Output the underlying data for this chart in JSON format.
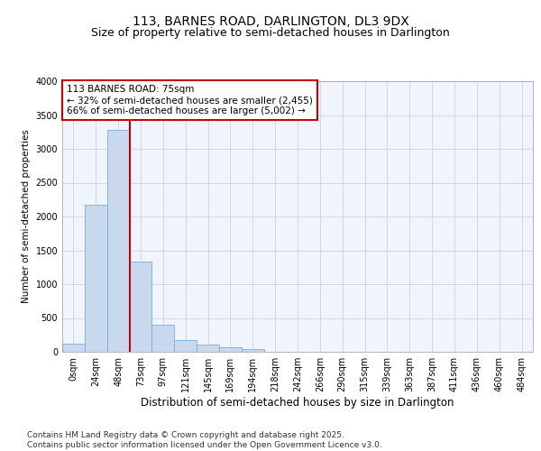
{
  "title1": "113, BARNES ROAD, DARLINGTON, DL3 9DX",
  "title2": "Size of property relative to semi-detached houses in Darlington",
  "xlabel": "Distribution of semi-detached houses by size in Darlington",
  "ylabel": "Number of semi-detached properties",
  "categories": [
    "0sqm",
    "24sqm",
    "48sqm",
    "73sqm",
    "97sqm",
    "121sqm",
    "145sqm",
    "169sqm",
    "194sqm",
    "218sqm",
    "242sqm",
    "266sqm",
    "290sqm",
    "315sqm",
    "339sqm",
    "363sqm",
    "387sqm",
    "411sqm",
    "436sqm",
    "460sqm",
    "484sqm"
  ],
  "bar_values": [
    115,
    2180,
    3280,
    1340,
    400,
    170,
    105,
    65,
    45,
    0,
    0,
    0,
    0,
    0,
    0,
    0,
    0,
    0,
    0,
    0,
    0
  ],
  "bar_color": "#c8d8ee",
  "bar_edge_color": "#7ab0d8",
  "vline_x_index": 3,
  "vline_color": "#cc0000",
  "annotation_line1": "113 BARNES ROAD: 75sqm",
  "annotation_line2": "← 32% of semi-detached houses are smaller (2,455)",
  "annotation_line3": "66% of semi-detached houses are larger (5,002) →",
  "annotation_box_color": "#ffffff",
  "annotation_box_edge": "#cc0000",
  "ylim": [
    0,
    4000
  ],
  "yticks": [
    0,
    500,
    1000,
    1500,
    2000,
    2500,
    3000,
    3500,
    4000
  ],
  "grid_color": "#cccccc",
  "background_color": "#ffffff",
  "plot_bg_color": "#f0f4fc",
  "footer": "Contains HM Land Registry data © Crown copyright and database right 2025.\nContains public sector information licensed under the Open Government Licence v3.0.",
  "title1_fontsize": 10,
  "title2_fontsize": 9,
  "xlabel_fontsize": 8.5,
  "ylabel_fontsize": 7.5,
  "tick_fontsize": 7,
  "annotation_fontsize": 7.5,
  "footer_fontsize": 6.5
}
